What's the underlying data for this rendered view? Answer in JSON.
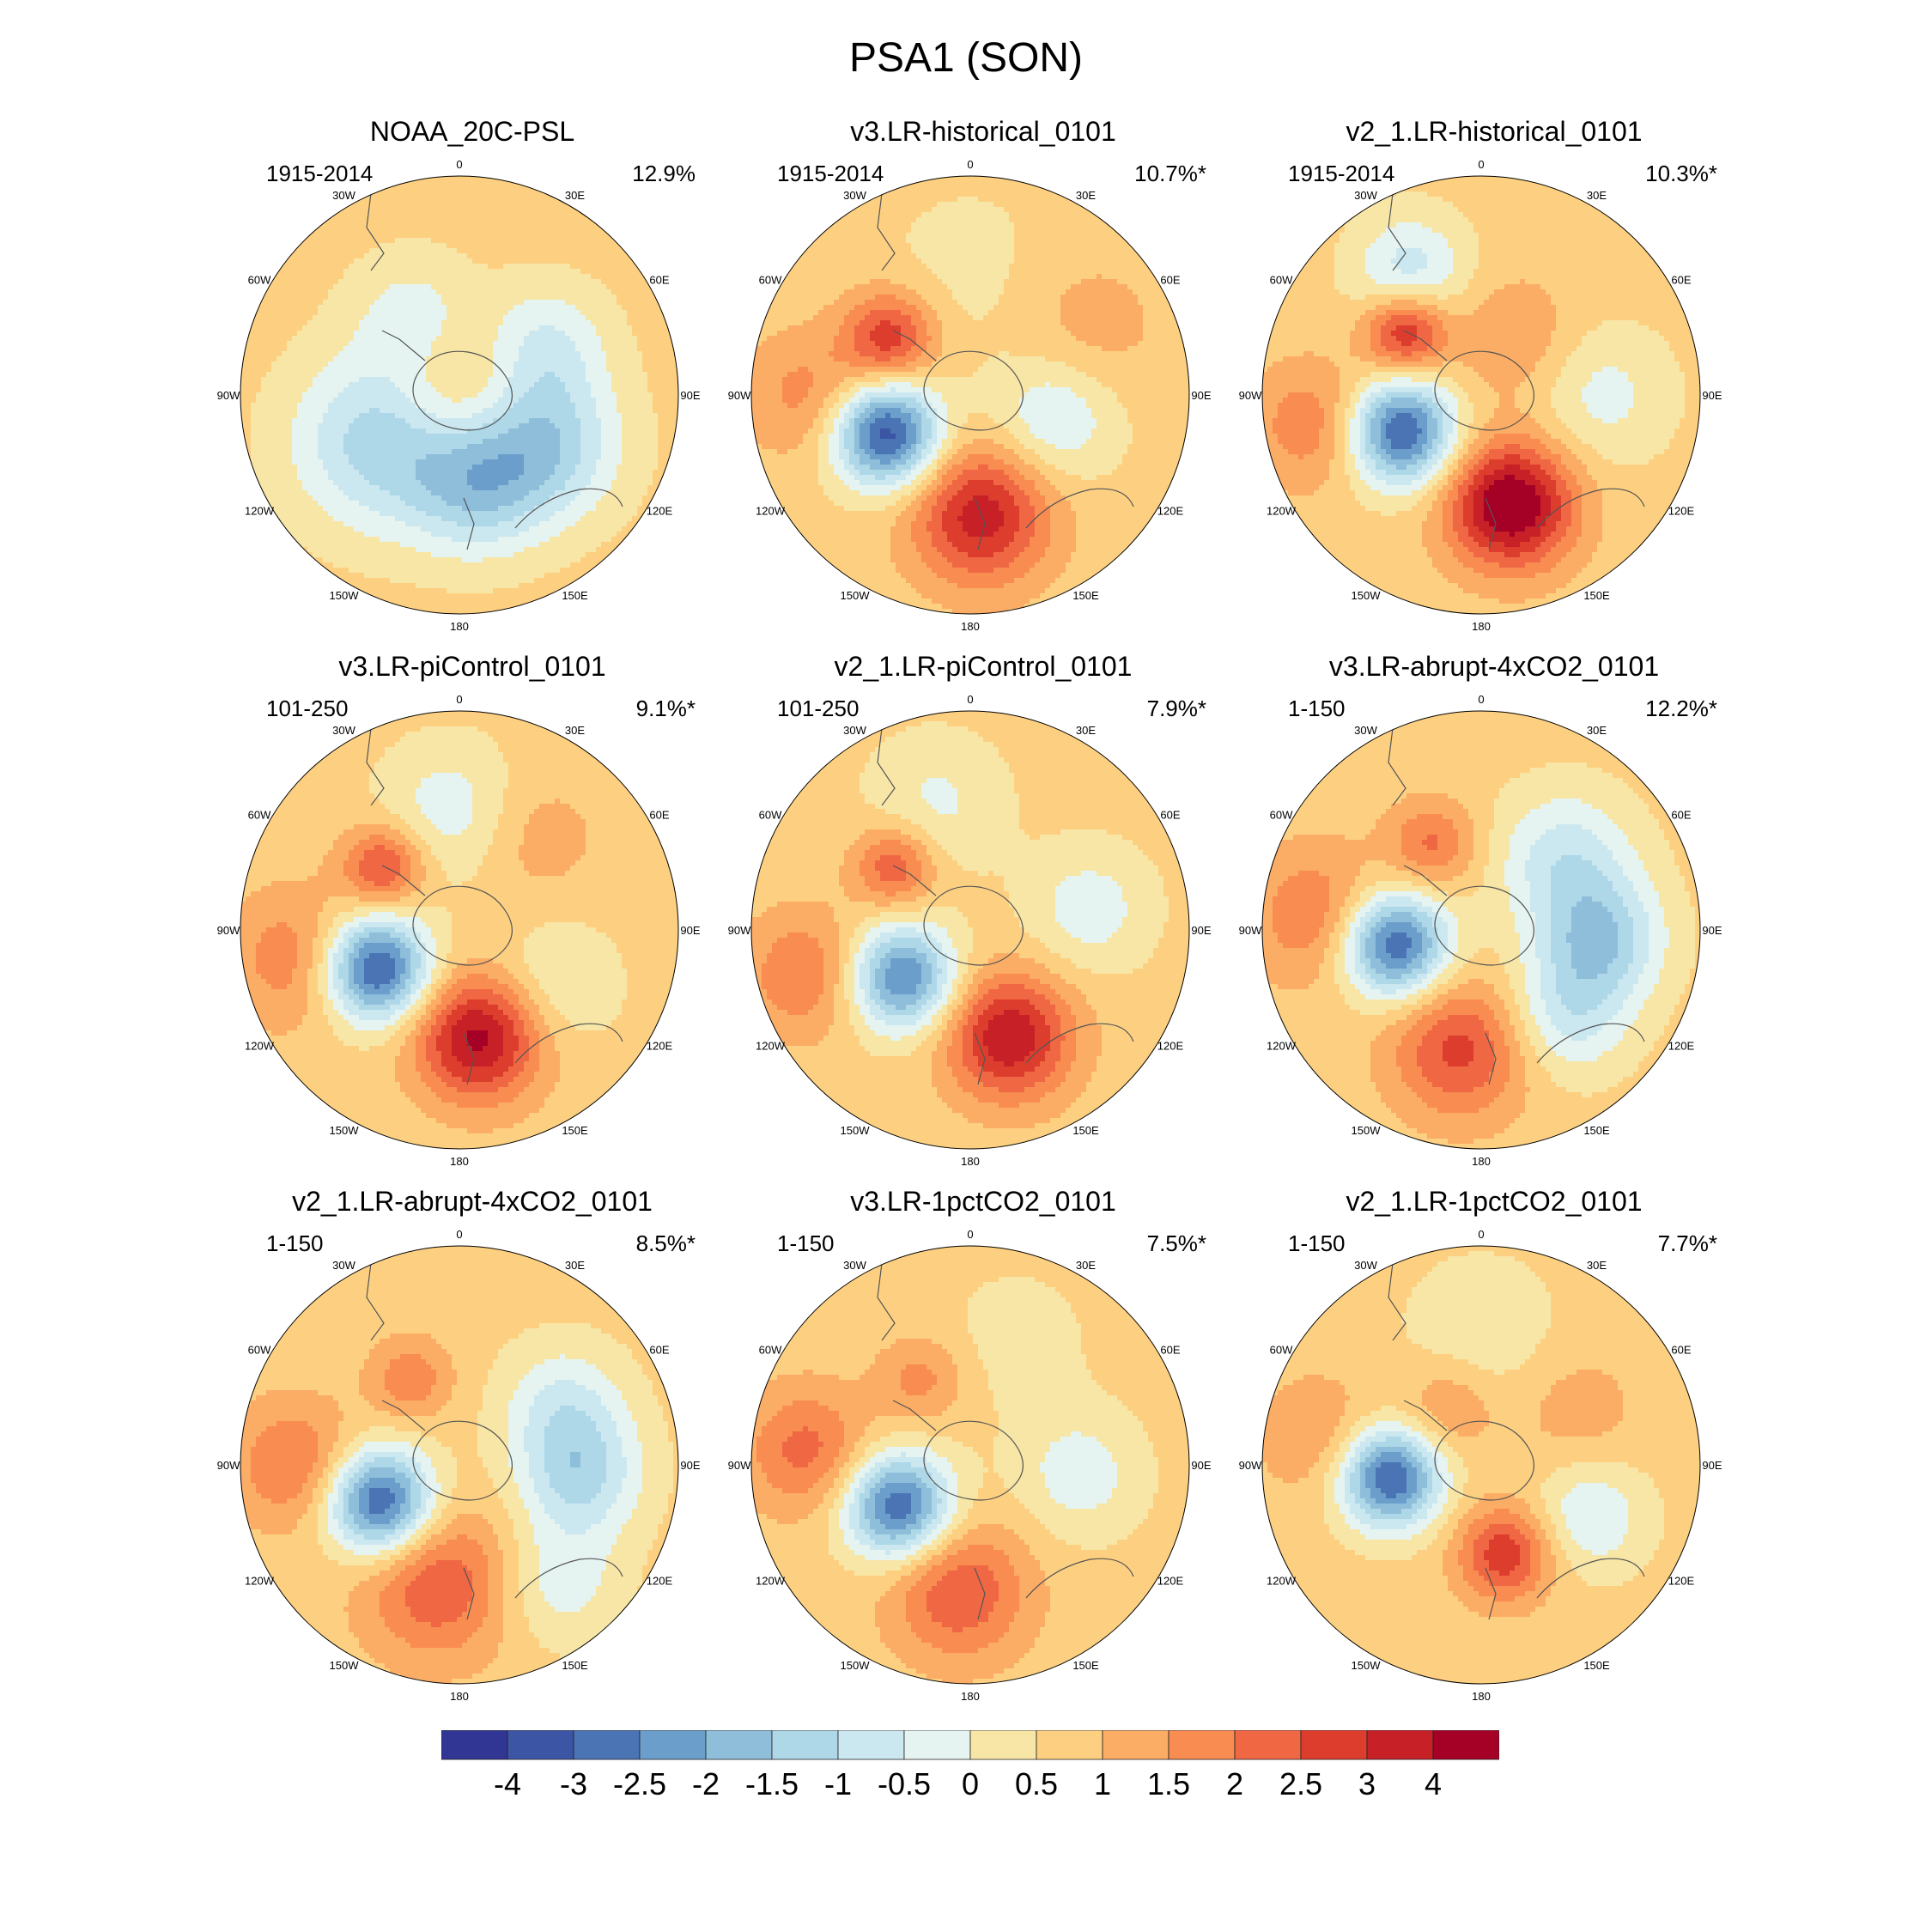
{
  "title": "PSA1 (SON)",
  "colorbar": {
    "colors": [
      "#313695",
      "#3c55a4",
      "#4a74b4",
      "#6c9ecb",
      "#8ebeda",
      "#aed7e8",
      "#cbe7f0",
      "#e6f4f1",
      "#f8e6a6",
      "#fdd081",
      "#fbac65",
      "#f88c51",
      "#f06744",
      "#dd3d2d",
      "#c72027",
      "#a50026"
    ],
    "tick_labels": [
      "-4",
      "-3",
      "-2.5",
      "-2",
      "-1.5",
      "-1",
      "-0.5",
      "0",
      "0.5",
      "1",
      "1.5",
      "2",
      "2.5",
      "3",
      "4"
    ]
  },
  "lon_labels": {
    "n": "0",
    "e30": "30E",
    "e60": "60E",
    "e90": "90E",
    "e120": "120E",
    "e150": "150E",
    "s": "180",
    "w150": "150W",
    "w120": "120W",
    "w90": "90W",
    "w60": "60W",
    "w30": "30W"
  },
  "chart_data": [
    {
      "type": "heatmap",
      "title": "NOAA_20C-PSL",
      "period": "1915-2014",
      "variance": "12.9%",
      "features": [
        {
          "angle": 20,
          "r": 0.0,
          "amp": 0.9,
          "sigma": 0.22
        },
        {
          "angle": 240,
          "r": 0.42,
          "amp": -2.0,
          "sigma": 0.28
        },
        {
          "angle": 170,
          "r": 0.42,
          "amp": -1.8,
          "sigma": 0.22
        },
        {
          "angle": 120,
          "r": 0.45,
          "amp": -2.0,
          "sigma": 0.24
        },
        {
          "angle": 330,
          "r": 0.42,
          "amp": -0.9,
          "sigma": 0.2
        },
        {
          "angle": 60,
          "r": 0.45,
          "amp": -1.2,
          "sigma": 0.2
        }
      ]
    },
    {
      "type": "heatmap",
      "title": "v3.LR-historical_0101",
      "period": "1915-2014",
      "variance": "10.7%*",
      "features": [
        {
          "angle": 245,
          "r": 0.42,
          "amp": -4.0,
          "sigma": 0.17
        },
        {
          "angle": 175,
          "r": 0.55,
          "amp": 2.6,
          "sigma": 0.22
        },
        {
          "angle": 305,
          "r": 0.45,
          "amp": 2.2,
          "sigma": 0.15
        },
        {
          "angle": 105,
          "r": 0.4,
          "amp": -1.3,
          "sigma": 0.2
        },
        {
          "angle": 270,
          "r": 0.75,
          "amp": 1.0,
          "sigma": 0.2
        },
        {
          "angle": 0,
          "r": 0.55,
          "amp": -0.4,
          "sigma": 0.3
        },
        {
          "angle": 60,
          "r": 0.6,
          "amp": 0.6,
          "sigma": 0.25
        }
      ]
    },
    {
      "type": "heatmap",
      "title": "v2_1.LR-historical_0101",
      "period": "1915-2014",
      "variance": "10.3%*",
      "features": [
        {
          "angle": 245,
          "r": 0.4,
          "amp": -3.8,
          "sigma": 0.17
        },
        {
          "angle": 165,
          "r": 0.52,
          "amp": 3.5,
          "sigma": 0.2
        },
        {
          "angle": 310,
          "r": 0.45,
          "amp": 2.5,
          "sigma": 0.13
        },
        {
          "angle": 90,
          "r": 0.55,
          "amp": -0.9,
          "sigma": 0.22
        },
        {
          "angle": 330,
          "r": 0.65,
          "amp": -1.5,
          "sigma": 0.18
        },
        {
          "angle": 260,
          "r": 0.78,
          "amp": 1.2,
          "sigma": 0.2
        },
        {
          "angle": 30,
          "r": 0.3,
          "amp": 0.8,
          "sigma": 0.2
        }
      ]
    },
    {
      "type": "heatmap",
      "title": "v3.LR-piControl_0101",
      "period": "101-250",
      "variance": "9.1%*",
      "features": [
        {
          "angle": 245,
          "r": 0.42,
          "amp": -4.0,
          "sigma": 0.17
        },
        {
          "angle": 170,
          "r": 0.5,
          "amp": 3.0,
          "sigma": 0.2
        },
        {
          "angle": 310,
          "r": 0.45,
          "amp": 2.0,
          "sigma": 0.13
        },
        {
          "angle": 120,
          "r": 0.5,
          "amp": -0.8,
          "sigma": 0.2
        },
        {
          "angle": 355,
          "r": 0.55,
          "amp": -1.0,
          "sigma": 0.22
        },
        {
          "angle": 260,
          "r": 0.75,
          "amp": 1.2,
          "sigma": 0.22
        },
        {
          "angle": 40,
          "r": 0.55,
          "amp": 0.6,
          "sigma": 0.2
        }
      ]
    },
    {
      "type": "heatmap",
      "title": "v2_1.LR-piControl_0101",
      "period": "101-250",
      "variance": "7.9%*",
      "features": [
        {
          "angle": 235,
          "r": 0.38,
          "amp": -3.3,
          "sigma": 0.17
        },
        {
          "angle": 160,
          "r": 0.52,
          "amp": 2.8,
          "sigma": 0.2
        },
        {
          "angle": 310,
          "r": 0.45,
          "amp": 1.8,
          "sigma": 0.13
        },
        {
          "angle": 80,
          "r": 0.55,
          "amp": -1.0,
          "sigma": 0.2
        },
        {
          "angle": 255,
          "r": 0.78,
          "amp": 1.3,
          "sigma": 0.2
        },
        {
          "angle": 345,
          "r": 0.6,
          "amp": -0.8,
          "sigma": 0.22
        }
      ]
    },
    {
      "type": "heatmap",
      "title": "v3.LR-abrupt-4xCO2_0101",
      "period": "1-150",
      "variance": "12.2%*",
      "features": [
        {
          "angle": 260,
          "r": 0.4,
          "amp": -3.8,
          "sigma": 0.17
        },
        {
          "angle": 190,
          "r": 0.55,
          "amp": 2.0,
          "sigma": 0.22
        },
        {
          "angle": 330,
          "r": 0.45,
          "amp": 1.4,
          "sigma": 0.14
        },
        {
          "angle": 95,
          "r": 0.55,
          "amp": -2.0,
          "sigma": 0.2
        },
        {
          "angle": 50,
          "r": 0.5,
          "amp": -1.5,
          "sigma": 0.22
        },
        {
          "angle": 135,
          "r": 0.55,
          "amp": -1.4,
          "sigma": 0.2
        },
        {
          "angle": 275,
          "r": 0.75,
          "amp": 1.3,
          "sigma": 0.22
        }
      ]
    },
    {
      "type": "heatmap",
      "title": "v2_1.LR-abrupt-4xCO2_0101",
      "period": "1-150",
      "variance": "8.5%*",
      "features": [
        {
          "angle": 245,
          "r": 0.4,
          "amp": -3.9,
          "sigma": 0.17
        },
        {
          "angle": 190,
          "r": 0.55,
          "amp": 1.8,
          "sigma": 0.24
        },
        {
          "angle": 270,
          "r": 0.75,
          "amp": 1.4,
          "sigma": 0.2
        },
        {
          "angle": 330,
          "r": 0.45,
          "amp": 1.2,
          "sigma": 0.13
        },
        {
          "angle": 95,
          "r": 0.55,
          "amp": -1.8,
          "sigma": 0.2
        },
        {
          "angle": 60,
          "r": 0.55,
          "amp": -1.2,
          "sigma": 0.2
        },
        {
          "angle": 140,
          "r": 0.7,
          "amp": -1.0,
          "sigma": 0.2
        }
      ]
    },
    {
      "type": "heatmap",
      "title": "v3.LR-1pctCO2_0101",
      "period": "1-150",
      "variance": "7.5%*",
      "features": [
        {
          "angle": 240,
          "r": 0.38,
          "amp": -3.7,
          "sigma": 0.17
        },
        {
          "angle": 185,
          "r": 0.58,
          "amp": 1.8,
          "sigma": 0.22
        },
        {
          "angle": 275,
          "r": 0.75,
          "amp": 1.5,
          "sigma": 0.2
        },
        {
          "angle": 330,
          "r": 0.45,
          "amp": 1.0,
          "sigma": 0.14
        },
        {
          "angle": 95,
          "r": 0.5,
          "amp": -1.0,
          "sigma": 0.2
        },
        {
          "angle": 20,
          "r": 0.6,
          "amp": -0.4,
          "sigma": 0.25
        }
      ]
    },
    {
      "type": "heatmap",
      "title": "v2_1.LR-1pctCO2_0101",
      "period": "1-150",
      "variance": "7.7%*",
      "features": [
        {
          "angle": 262,
          "r": 0.42,
          "amp": -3.8,
          "sigma": 0.16
        },
        {
          "angle": 165,
          "r": 0.42,
          "amp": 2.2,
          "sigma": 0.15
        },
        {
          "angle": 330,
          "r": 0.3,
          "amp": 0.9,
          "sigma": 0.15
        },
        {
          "angle": 115,
          "r": 0.55,
          "amp": -1.2,
          "sigma": 0.18
        },
        {
          "angle": 60,
          "r": 0.5,
          "amp": 0.6,
          "sigma": 0.2
        },
        {
          "angle": 0,
          "r": 0.6,
          "amp": -0.6,
          "sigma": 0.25
        },
        {
          "angle": 280,
          "r": 0.75,
          "amp": 0.8,
          "sigma": 0.2
        }
      ]
    }
  ]
}
